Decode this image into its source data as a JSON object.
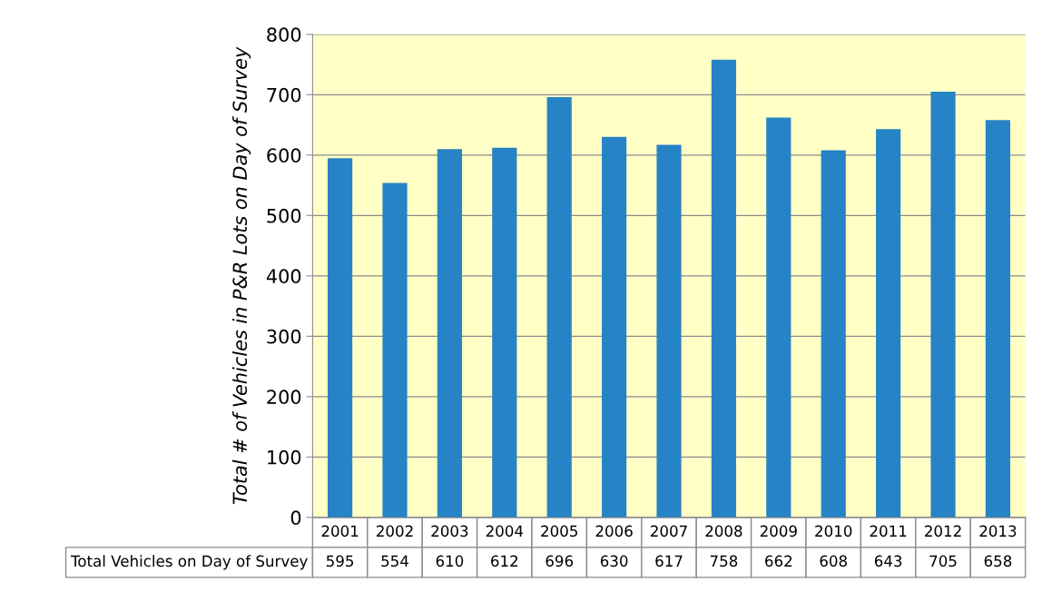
{
  "chart_data": {
    "type": "bar",
    "ylabel": "Total # of Vehicles in P&R Lots on Day of Survey",
    "categories": [
      "2001",
      "2002",
      "2003",
      "2004",
      "2005",
      "2006",
      "2007",
      "2008",
      "2009",
      "2010",
      "2011",
      "2012",
      "2013"
    ],
    "series": [
      {
        "name": "Total Vehicles on Day of Survey",
        "color": "#2683c6",
        "values": [
          595,
          554,
          610,
          612,
          696,
          630,
          617,
          758,
          662,
          608,
          643,
          705,
          658
        ]
      }
    ],
    "ylim": [
      0,
      800
    ],
    "yticks": [
      0,
      100,
      200,
      300,
      400,
      500,
      600,
      700,
      800
    ],
    "grid": "y",
    "legend": false,
    "data_labels": true
  }
}
